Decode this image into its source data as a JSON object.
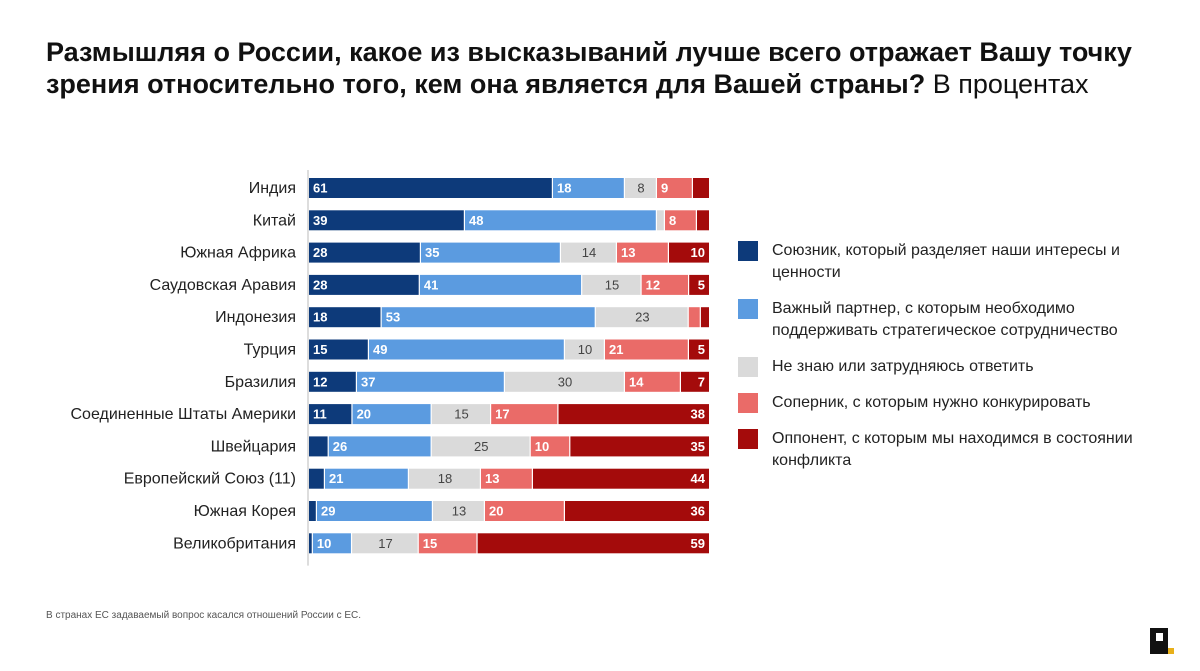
{
  "title": {
    "bold": "Размышляя о России, какое из высказываний лучше всего отражает Вашу точку зрения относительно того, кем она является для Вашей страны?",
    "normal": "В процентах"
  },
  "footnote": "В странах ЕС задаваемый вопрос касался отношений России с ЕС.",
  "logo_text": "P",
  "chart_data": {
    "type": "bar",
    "orientation": "horizontal",
    "stacked": true,
    "normalized": true,
    "categories": [
      "Индия",
      "Китай",
      "Южная Африка",
      "Саудовская Аравия",
      "Индонезия",
      "Турция",
      "Бразилия",
      "Соединенные Штаты Америки",
      "Швейцария",
      "Европейский Союз (11)",
      "Южная Корея",
      "Великобритания"
    ],
    "series": [
      {
        "name": "Союзник, который разделяет наши интересы и ценности",
        "color": "#0d3a7a",
        "values": [
          61,
          39,
          28,
          28,
          18,
          15,
          12,
          11,
          5,
          4,
          2,
          1
        ],
        "labels": [
          "61",
          "39",
          "28",
          "28",
          "18",
          "15",
          "12",
          "11",
          "",
          "",
          "",
          ""
        ]
      },
      {
        "name": "Важный партнер, с которым необходимо поддерживать стратегическое сотрудничество",
        "color": "#5b9be0",
        "values": [
          18,
          48,
          35,
          41,
          53,
          49,
          37,
          20,
          26,
          21,
          29,
          10
        ],
        "labels": [
          "18",
          "48",
          "35",
          "41",
          "53",
          "49",
          "37",
          "20",
          "26",
          "21",
          "29",
          "10"
        ]
      },
      {
        "name": "Не знаю или затрудняюсь ответить",
        "color": "#dadada",
        "values": [
          8,
          2,
          14,
          15,
          23,
          10,
          30,
          15,
          25,
          18,
          13,
          17
        ],
        "labels": [
          "8",
          "",
          "14",
          "15",
          "23",
          "10",
          "30",
          "15",
          "25",
          "18",
          "13",
          "17"
        ]
      },
      {
        "name": "Соперник, с которым нужно конкурировать",
        "color": "#ea6b68",
        "values": [
          9,
          8,
          13,
          12,
          3,
          21,
          14,
          17,
          10,
          13,
          20,
          15
        ],
        "labels": [
          "9",
          "8",
          "13",
          "12",
          "",
          "21",
          "14",
          "17",
          "10",
          "13",
          "20",
          "15"
        ]
      },
      {
        "name": "Оппонент, с которым мы находимся в состоянии конфликта",
        "color": "#a40b0b",
        "values": [
          4,
          3,
          10,
          5,
          2,
          5,
          7,
          38,
          35,
          44,
          36,
          59
        ],
        "labels": [
          "",
          "",
          "10",
          "5",
          "",
          "5",
          "7",
          "38",
          "35",
          "44",
          "36",
          "59"
        ]
      }
    ],
    "label_colors": [
      "#ffffff",
      "#ffffff",
      "#444444",
      "#ffffff",
      "#ffffff"
    ]
  }
}
